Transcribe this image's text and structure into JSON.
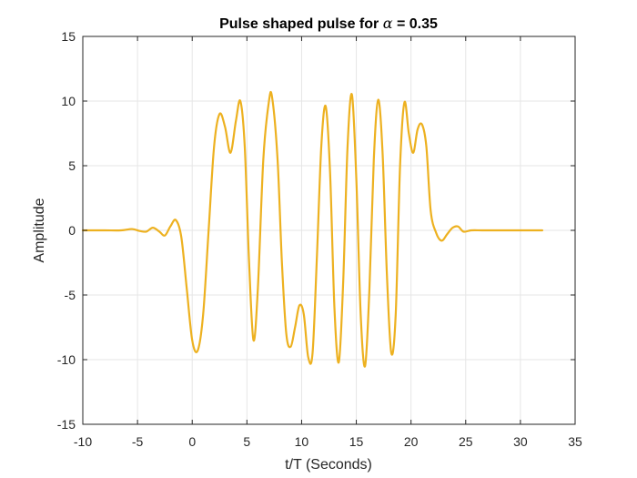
{
  "chart_data": {
    "type": "line",
    "title_prefix": "Pulse shaped pulse for ",
    "title_symbol": "α",
    "title_suffix": " = 0.35",
    "xlabel": "t/T (Seconds)",
    "ylabel": "Amplitude",
    "xlim": [
      -10,
      35
    ],
    "ylim": [
      -15,
      15
    ],
    "xticks": [
      "-10",
      "-5",
      "0",
      "5",
      "10",
      "15",
      "20",
      "25",
      "30",
      "35"
    ],
    "yticks": [
      "-15",
      "-10",
      "-5",
      "0",
      "5",
      "10",
      "15"
    ],
    "grid": true,
    "colors": {
      "line": "#EDB120",
      "grid": "#e6e6e6",
      "axis": "#262626"
    },
    "series": [
      {
        "x": [
          -10,
          -8,
          -6.5,
          -5.5,
          -4.8,
          -4.2,
          -3.6,
          -3.0,
          -2.5,
          -2.0,
          -1.5,
          -1.0,
          -0.5,
          0,
          0.5,
          1.0,
          1.5,
          2.0,
          2.5,
          3.0,
          3.5,
          4.0,
          4.4,
          4.8,
          5.2,
          5.6,
          6.0,
          6.5,
          7.0,
          7.3,
          7.8,
          8.2,
          8.6,
          9.0,
          9.4,
          9.8,
          10.2,
          10.6,
          11.0,
          11.4,
          11.8,
          12.2,
          12.6,
          13.0,
          13.4,
          13.8,
          14.2,
          14.6,
          15.0,
          15.4,
          15.8,
          16.2,
          16.6,
          17.0,
          17.4,
          17.8,
          18.2,
          18.6,
          19.0,
          19.4,
          19.8,
          20.2,
          20.6,
          21.0,
          21.4,
          21.8,
          22.3,
          22.8,
          23.3,
          23.8,
          24.3,
          24.8,
          25.5,
          26.5,
          28,
          30,
          32
        ],
        "y": [
          0,
          0,
          0,
          0.1,
          -0.05,
          -0.1,
          0.2,
          -0.1,
          -0.4,
          0.3,
          0.8,
          -0.5,
          -4.5,
          -8.5,
          -9.3,
          -6.5,
          0,
          6.5,
          9.0,
          8.0,
          6.0,
          8.5,
          10.0,
          6.5,
          -2.5,
          -8.5,
          -4.5,
          5.5,
          9.9,
          10.3,
          5.5,
          -2.5,
          -8.0,
          -9.0,
          -7.5,
          -5.8,
          -6.5,
          -9.8,
          -9.5,
          -2.0,
          6.5,
          9.6,
          4.5,
          -6.0,
          -10.2,
          -4.0,
          6.5,
          10.5,
          4.0,
          -6.5,
          -10.5,
          -4.5,
          5.5,
          10.1,
          6.0,
          -3.5,
          -9.5,
          -6.5,
          5.0,
          9.9,
          7.5,
          6.0,
          7.8,
          8.2,
          6.5,
          1.5,
          -0.2,
          -0.8,
          -0.3,
          0.2,
          0.3,
          -0.1,
          0,
          0,
          0,
          0,
          0
        ]
      }
    ]
  }
}
